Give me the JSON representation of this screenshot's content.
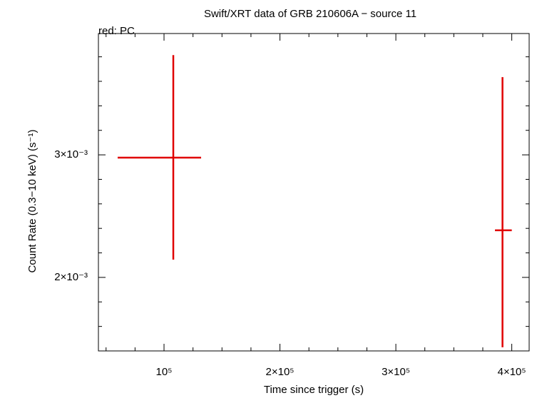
{
  "chart_data": {
    "type": "errorbar",
    "title": "Swift/XRT data of GRB 210606A − source 11",
    "subtitle": "red: PC",
    "x_label": "Time since trigger (s)",
    "y_label": "Count Rate (0.3−10 keV) (s⁻¹)",
    "xlim": [
      43400,
      415000
    ],
    "ylim": [
      0.0014,
      0.00399
    ],
    "xticks": [
      {
        "value": 100000,
        "label": "10⁵"
      },
      {
        "value": 200000,
        "label": "2×10⁵"
      },
      {
        "value": 300000,
        "label": "3×10⁵"
      },
      {
        "value": 400000,
        "label": "4×10⁵"
      }
    ],
    "xminorticks": [
      50000,
      75000,
      125000,
      150000,
      175000,
      225000,
      250000,
      275000,
      325000,
      350000,
      375000
    ],
    "yticks": [
      {
        "value": 0.002,
        "label": "2×10⁻³"
      },
      {
        "value": 0.003,
        "label": "3×10⁻³"
      }
    ],
    "yminorticks": [
      0.0016,
      0.0018,
      0.0022,
      0.0024,
      0.0026,
      0.0028,
      0.0032,
      0.0034,
      0.0036,
      0.0038
    ],
    "series": [
      {
        "name": "PC",
        "color": "#e00000",
        "x": [
          108000,
          392000
        ],
        "x_low": [
          60000,
          385500
        ],
        "x_high": [
          132000,
          400000
        ],
        "values": [
          0.002977,
          0.002384
        ],
        "y_low": [
          0.002145,
          0.00143
        ],
        "y_high": [
          0.003814,
          0.003634
        ]
      }
    ]
  }
}
